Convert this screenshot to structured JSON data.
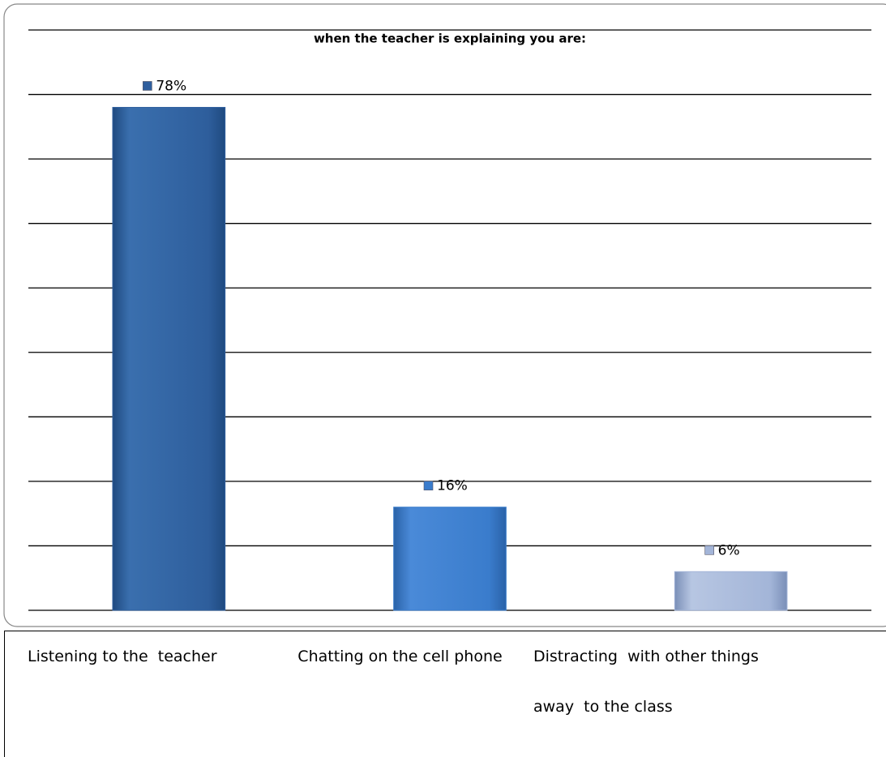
{
  "chart_data": {
    "type": "bar",
    "title": "when the teacher is explaining  you are:",
    "categories": [
      "Listening to the  teacher",
      "Chatting on the cell phone",
      "Distracting  with other things away  to the class"
    ],
    "values": [
      78,
      16,
      6
    ],
    "value_labels": [
      "78%",
      "16%",
      "6%"
    ],
    "colors": [
      "#2f5f9e",
      "#3a7ccc",
      "#a3b5d8"
    ],
    "ylim": [
      0,
      90
    ],
    "yticks": [
      0,
      10,
      20,
      30,
      40,
      50,
      60,
      70,
      80,
      90
    ],
    "grid": true
  }
}
